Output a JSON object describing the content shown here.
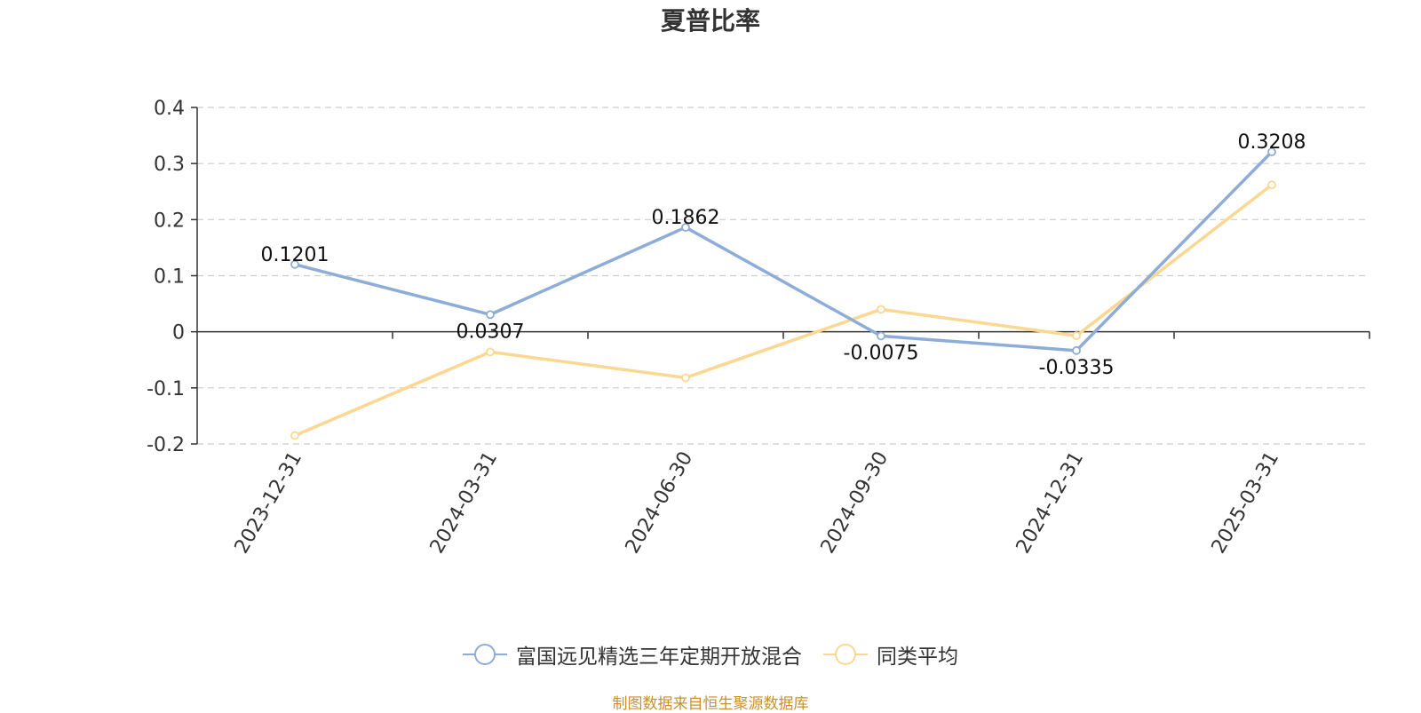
{
  "chart_data": {
    "type": "line",
    "title": "夏普比率",
    "categories": [
      "2023-12-31",
      "2024-03-31",
      "2024-06-30",
      "2024-09-30",
      "2024-12-31",
      "2025-03-31"
    ],
    "series": [
      {
        "name": "富国远见精选三年定期开放混合",
        "values": [
          0.1201,
          0.0307,
          0.1862,
          -0.0075,
          -0.0335,
          0.3208
        ],
        "data_labels": [
          "0.1201",
          "0.0307",
          "0.1862",
          "-0.0075",
          "-0.0335",
          "0.3208"
        ],
        "color": "#8eacd8"
      },
      {
        "name": "同类平均",
        "values": [
          -0.185,
          -0.036,
          -0.082,
          0.04,
          -0.007,
          0.262
        ],
        "color": "#fcd792"
      }
    ],
    "yticks": [
      "0.4",
      "0.3",
      "0.2",
      "0.1",
      "0",
      "-0.1",
      "-0.2"
    ],
    "ylim": [
      -0.2,
      0.4
    ],
    "grid": true,
    "legend_position": "bottom-center"
  },
  "footer": {
    "source": "制图数据来自恒生聚源数据库",
    "source_color": "#c8902e"
  }
}
